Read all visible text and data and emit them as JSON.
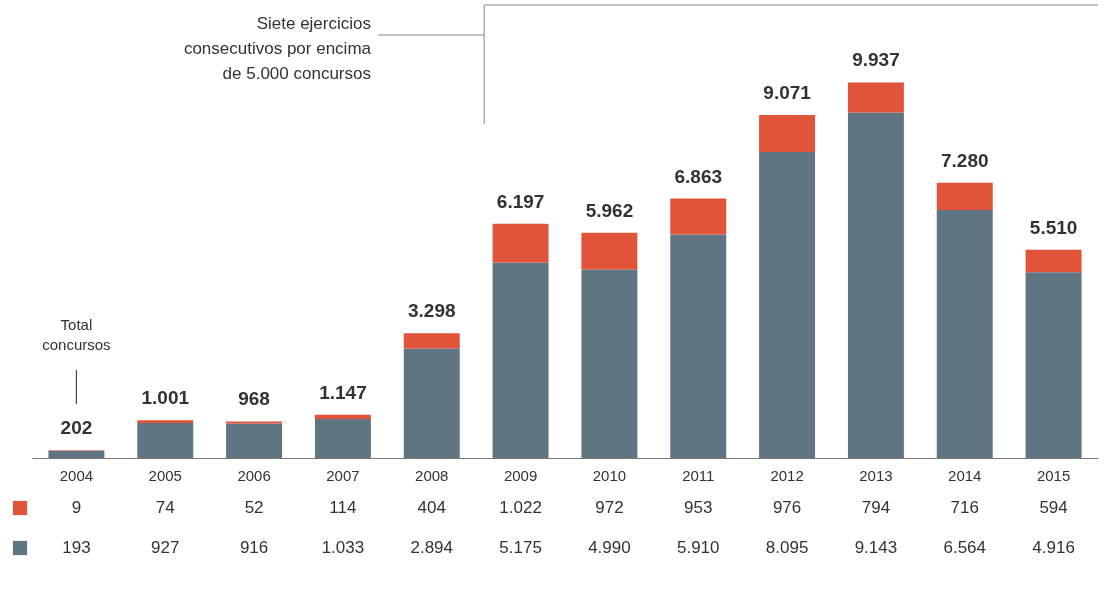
{
  "chart_data": {
    "type": "bar",
    "stacked": true,
    "categories": [
      "2004",
      "2005",
      "2006",
      "2007",
      "2008",
      "2009",
      "2010",
      "2011",
      "2012",
      "2013",
      "2014",
      "2015"
    ],
    "series": [
      {
        "color": "#5f7682",
        "values": [
          193,
          927,
          916,
          1033,
          2894,
          5175,
          4990,
          5910,
          8095,
          9143,
          6564,
          4916
        ],
        "value_labels": [
          "193",
          "927",
          "916",
          "1.033",
          "2.894",
          "5.175",
          "4.990",
          "5.910",
          "8.095",
          "9.143",
          "6.564",
          "4.916"
        ]
      },
      {
        "color": "#e0553a",
        "values": [
          9,
          74,
          52,
          114,
          404,
          1022,
          972,
          953,
          976,
          794,
          716,
          594
        ],
        "value_labels": [
          "9",
          "74",
          "52",
          "114",
          "404",
          "1.022",
          "972",
          "953",
          "976",
          "794",
          "716",
          "594"
        ]
      }
    ],
    "totals": [
      "202",
      "1.001",
      "968",
      "1.147",
      "3.298",
      "6.197",
      "5.962",
      "6.863",
      "9.071",
      "9.937",
      "7.280",
      "5.510"
    ],
    "annotations": [
      "Total concursos",
      "Siete ejercicios consecutivos por encima de 5.000 concursos"
    ]
  }
}
